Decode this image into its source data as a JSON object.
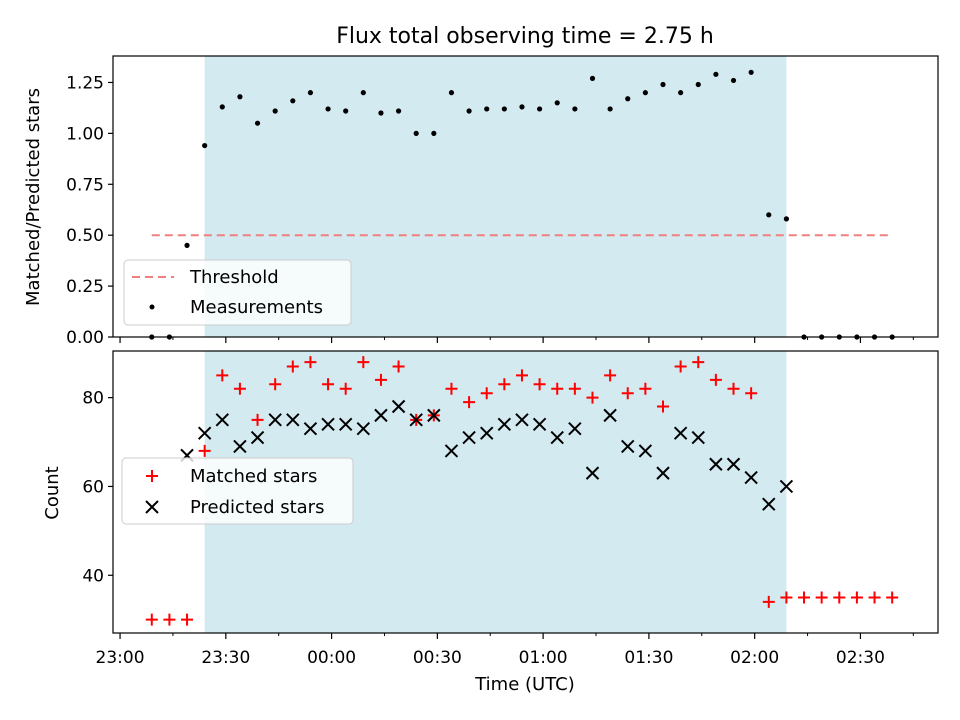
{
  "chart_data": {
    "title": "Flux total observing time = 2.75 h",
    "xlabel": "Time (UTC)",
    "x_ticks": [
      "23:00",
      "23:30",
      "00:00",
      "00:30",
      "01:00",
      "01:30",
      "02:00",
      "02:30"
    ],
    "x_tick_minutes": [
      0,
      30,
      60,
      90,
      120,
      150,
      180,
      210
    ],
    "x_minor_tick_minutes": [
      15,
      45,
      75,
      105,
      135,
      165,
      195,
      225
    ],
    "x_range_minutes": [
      -2,
      232
    ],
    "observing_window_minutes": [
      24,
      189
    ],
    "colors": {
      "observing_window": "#d3eaf0",
      "threshold": "#f08080",
      "measurements": "#000000",
      "matched": "#ff0000",
      "predicted": "#000000"
    },
    "panels": [
      {
        "type": "scatter",
        "ylabel": "Matched/Predicted stars",
        "ylim": [
          0,
          1.38
        ],
        "y_ticks": [
          0,
          0.25,
          0.5,
          0.75,
          1.0,
          1.25
        ],
        "y_tick_labels": [
          "0.00",
          "0.25",
          "0.50",
          "0.75",
          "1.00",
          "1.25"
        ],
        "legend_position": "lower-left",
        "threshold": {
          "name": "Threshold",
          "value": 0.5,
          "x_start": 9,
          "x_end": 219
        },
        "series": [
          {
            "name": "Measurements",
            "x": [
              9,
              14,
              19,
              24,
              29,
              34,
              39,
              44,
              49,
              54,
              59,
              64,
              69,
              74,
              79,
              84,
              89,
              94,
              99,
              104,
              109,
              114,
              119,
              124,
              129,
              134,
              139,
              144,
              149,
              154,
              159,
              164,
              169,
              174,
              179,
              184,
              189,
              194,
              199,
              204,
              209,
              214,
              219
            ],
            "y": [
              0,
              0,
              0.45,
              0.94,
              1.13,
              1.18,
              1.05,
              1.11,
              1.16,
              1.2,
              1.12,
              1.11,
              1.2,
              1.1,
              1.11,
              1.0,
              1.0,
              1.2,
              1.11,
              1.12,
              1.12,
              1.13,
              1.12,
              1.15,
              1.12,
              1.27,
              1.12,
              1.17,
              1.2,
              1.24,
              1.2,
              1.24,
              1.29,
              1.26,
              1.3,
              0.6,
              0.58,
              0,
              0,
              0,
              0,
              0,
              0
            ]
          }
        ]
      },
      {
        "type": "scatter",
        "ylabel": "Count",
        "ylim": [
          27,
          90.5
        ],
        "y_ticks": [
          40,
          60,
          80
        ],
        "y_tick_labels": [
          "40",
          "60",
          "80"
        ],
        "legend_position": "center-left",
        "series": [
          {
            "name": "Matched stars",
            "marker": "plus",
            "x": [
              9,
              14,
              19,
              24,
              29,
              34,
              39,
              44,
              49,
              54,
              59,
              64,
              69,
              74,
              79,
              84,
              89,
              94,
              99,
              104,
              109,
              114,
              119,
              124,
              129,
              134,
              139,
              144,
              149,
              154,
              159,
              164,
              169,
              174,
              179,
              184,
              189,
              194,
              199,
              204,
              209,
              214,
              219
            ],
            "y": [
              30,
              30,
              30,
              68,
              85,
              82,
              75,
              83,
              87,
              88,
              83,
              82,
              88,
              84,
              87,
              75,
              76,
              82,
              79,
              81,
              83,
              85,
              83,
              82,
              82,
              80,
              85,
              81,
              82,
              78,
              87,
              88,
              84,
              82,
              81,
              34,
              35,
              35,
              35,
              35,
              35,
              35,
              35
            ]
          },
          {
            "name": "Predicted stars",
            "marker": "x",
            "x": [
              19,
              24,
              29,
              34,
              39,
              44,
              49,
              54,
              59,
              64,
              69,
              74,
              79,
              84,
              89,
              94,
              99,
              104,
              109,
              114,
              119,
              124,
              129,
              134,
              139,
              144,
              149,
              154,
              159,
              164,
              169,
              174,
              179,
              184,
              189
            ],
            "y": [
              67,
              72,
              75,
              69,
              71,
              75,
              75,
              73,
              74,
              74,
              73,
              76,
              78,
              75,
              76,
              68,
              71,
              72,
              74,
              75,
              74,
              71,
              73,
              63,
              76,
              69,
              68,
              63,
              72,
              71,
              65,
              65,
              62,
              56,
              60
            ]
          }
        ]
      }
    ]
  }
}
